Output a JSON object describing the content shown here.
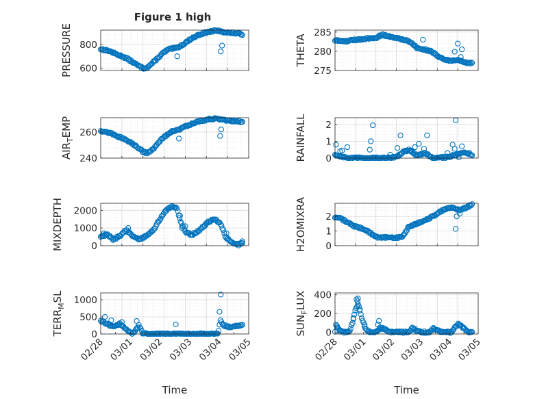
{
  "figure": {
    "title": "Figure 1 high",
    "background": "#ffffff",
    "axes_color": "#262626",
    "marker_color": "#0072bd",
    "grid_color": "#d9d9d9"
  },
  "chart_data": [
    {
      "type": "scatter",
      "ylabel": "PRESSURE",
      "xlabel": "",
      "ylim": [
        580,
        920
      ],
      "yticks": [
        600,
        800
      ],
      "ytick_labels": [
        "600",
        "800"
      ],
      "xlim": [
        0,
        7
      ],
      "xticks": [
        0,
        1,
        2,
        3,
        4,
        5,
        6,
        7
      ],
      "xtick_labels": [],
      "grid": true,
      "minor_grid": true,
      "shape": [
        [
          0,
          760
        ],
        [
          0.4,
          745
        ],
        [
          0.7,
          720
        ],
        [
          1.0,
          700
        ],
        [
          1.25,
          680
        ],
        [
          1.6,
          640
        ],
        [
          2.0,
          598
        ],
        [
          2.2,
          605
        ],
        [
          2.5,
          650
        ],
        [
          2.9,
          720
        ],
        [
          3.2,
          758
        ],
        [
          3.6,
          770
        ],
        [
          3.9,
          800
        ],
        [
          4.3,
          850
        ],
        [
          4.7,
          885
        ],
        [
          5.1,
          905
        ],
        [
          5.45,
          915
        ],
        [
          5.7,
          910
        ],
        [
          6.0,
          898
        ],
        [
          6.3,
          895
        ],
        [
          6.55,
          890
        ],
        [
          6.7,
          885
        ]
      ],
      "outliers": [
        [
          3.62,
          700
        ],
        [
          5.68,
          740
        ],
        [
          5.74,
          790
        ],
        [
          6.05,
          900
        ]
      ]
    },
    {
      "type": "scatter",
      "ylabel": "THETA",
      "xlabel": "",
      "ylim": [
        275,
        285.5
      ],
      "yticks": [
        275,
        280,
        285
      ],
      "ytick_labels": [
        "275",
        "280",
        "285"
      ],
      "xlim": [
        0,
        7
      ],
      "xticks": [
        0,
        1,
        2,
        3,
        4,
        5,
        6,
        7
      ],
      "xtick_labels": [],
      "grid": true,
      "minor_grid": true,
      "shape": [
        [
          0,
          282.8
        ],
        [
          0.5,
          282.6
        ],
        [
          1.0,
          283.0
        ],
        [
          1.5,
          283.2
        ],
        [
          2.0,
          283.5
        ],
        [
          2.3,
          284.3
        ],
        [
          2.7,
          283.8
        ],
        [
          3.0,
          283.4
        ],
        [
          3.3,
          283.1
        ],
        [
          3.7,
          282.4
        ],
        [
          4.0,
          280.9
        ],
        [
          4.3,
          280.6
        ],
        [
          4.7,
          280.0
        ],
        [
          5.0,
          278.8
        ],
        [
          5.3,
          278.1
        ],
        [
          5.6,
          277.5
        ],
        [
          5.9,
          277.8
        ],
        [
          6.1,
          277.6
        ],
        [
          6.35,
          277.0
        ],
        [
          6.55,
          276.8
        ],
        [
          6.7,
          277.0
        ]
      ],
      "outliers": [
        [
          4.3,
          283.0
        ],
        [
          5.85,
          279.9
        ],
        [
          6.0,
          282.0
        ],
        [
          6.2,
          280.5
        ],
        [
          6.15,
          278.5
        ]
      ]
    },
    {
      "type": "scatter",
      "ylabel": "AIR_TEMP",
      "xlabel": "",
      "ylim": [
        240,
        271
      ],
      "yticks": [
        240,
        260
      ],
      "ytick_labels": [
        "240",
        "260"
      ],
      "xlim": [
        0,
        7
      ],
      "xticks": [
        0,
        1,
        2,
        3,
        4,
        5,
        6,
        7
      ],
      "xtick_labels": [],
      "grid": true,
      "minor_grid": true,
      "shape": [
        [
          0,
          261
        ],
        [
          0.5,
          259
        ],
        [
          0.9,
          256
        ],
        [
          1.3,
          253
        ],
        [
          1.7,
          249
        ],
        [
          2.0,
          245
        ],
        [
          2.2,
          244
        ],
        [
          2.5,
          247
        ],
        [
          2.9,
          255
        ],
        [
          3.3,
          260
        ],
        [
          3.7,
          262
        ],
        [
          4.1,
          265
        ],
        [
          4.6,
          268
        ],
        [
          5.0,
          269.5
        ],
        [
          5.4,
          270.5
        ],
        [
          5.8,
          269
        ],
        [
          6.2,
          268.5
        ],
        [
          6.5,
          268
        ],
        [
          6.7,
          267.5
        ]
      ],
      "outliers": [
        [
          3.7,
          255
        ],
        [
          5.65,
          257
        ],
        [
          5.7,
          262
        ],
        [
          6.0,
          269
        ]
      ]
    },
    {
      "type": "scatter",
      "ylabel": "RAINFALL",
      "xlabel": "",
      "ylim": [
        0,
        2.4
      ],
      "yticks": [
        0,
        1,
        2
      ],
      "ytick_labels": [
        "0",
        "1",
        "2"
      ],
      "xlim": [
        0,
        7
      ],
      "xticks": [
        0,
        1,
        2,
        3,
        4,
        5,
        6,
        7
      ],
      "xtick_labels": [],
      "grid": true,
      "minor_grid": true,
      "shape": [
        [
          0,
          0.2
        ],
        [
          0.3,
          0.1
        ],
        [
          0.6,
          0
        ],
        [
          2.5,
          0
        ],
        [
          3.0,
          0.05
        ],
        [
          3.3,
          0.35
        ],
        [
          3.6,
          0.5
        ],
        [
          4.0,
          0.15
        ],
        [
          4.4,
          0.3
        ],
        [
          4.8,
          0
        ],
        [
          5.4,
          0.05
        ],
        [
          5.8,
          0.15
        ],
        [
          6.2,
          0.3
        ],
        [
          6.5,
          0.3
        ],
        [
          6.7,
          0.2
        ]
      ],
      "outliers": [
        [
          0.05,
          0.8
        ],
        [
          0.25,
          0.4
        ],
        [
          0.35,
          0.45
        ],
        [
          0.6,
          0.65
        ],
        [
          1.05,
          0.05
        ],
        [
          1.7,
          0.5
        ],
        [
          1.75,
          1.0
        ],
        [
          1.85,
          1.95
        ],
        [
          2.7,
          0.2
        ],
        [
          3.05,
          0.6
        ],
        [
          3.2,
          1.35
        ],
        [
          3.5,
          0.4
        ],
        [
          3.7,
          0.4
        ],
        [
          3.75,
          0.45
        ],
        [
          3.9,
          0.65
        ],
        [
          4.1,
          0.85
        ],
        [
          4.35,
          0.55
        ],
        [
          4.5,
          1.35
        ],
        [
          5.5,
          0.3
        ],
        [
          5.75,
          0.8
        ],
        [
          5.85,
          0.55
        ],
        [
          5.9,
          2.25
        ],
        [
          6.05,
          0.05
        ],
        [
          6.2,
          0.7
        ]
      ]
    },
    {
      "type": "scatter",
      "ylabel": "MIXDEPTH",
      "xlabel": "",
      "ylim": [
        0,
        2400
      ],
      "yticks": [
        0,
        1000,
        2000
      ],
      "ytick_labels": [
        "0",
        "1000",
        "2000"
      ],
      "xlim": [
        0,
        7
      ],
      "xticks": [
        0,
        1,
        2,
        3,
        4,
        5,
        6,
        7
      ],
      "xtick_labels": [],
      "grid": true,
      "minor_grid": true,
      "shape": [
        [
          0,
          500
        ],
        [
          0.3,
          650
        ],
        [
          0.6,
          350
        ],
        [
          0.9,
          550
        ],
        [
          1.2,
          900
        ],
        [
          1.5,
          550
        ],
        [
          1.8,
          350
        ],
        [
          2.1,
          500
        ],
        [
          2.5,
          900
        ],
        [
          2.8,
          1500
        ],
        [
          3.1,
          2000
        ],
        [
          3.4,
          2250
        ],
        [
          3.6,
          2100
        ],
        [
          3.8,
          1300
        ],
        [
          4.0,
          800
        ],
        [
          4.3,
          600
        ],
        [
          4.7,
          900
        ],
        [
          5.1,
          1350
        ],
        [
          5.4,
          1500
        ],
        [
          5.7,
          1200
        ],
        [
          5.9,
          500
        ],
        [
          6.2,
          200
        ],
        [
          6.5,
          50
        ],
        [
          6.7,
          150
        ]
      ],
      "outliers": [
        [
          0.15,
          700
        ],
        [
          1.3,
          1000
        ],
        [
          3.75,
          1700
        ],
        [
          3.85,
          1000
        ],
        [
          4.0,
          1100
        ],
        [
          5.95,
          700
        ],
        [
          6.7,
          250
        ]
      ]
    },
    {
      "type": "scatter",
      "ylabel": "H2OMIXRA",
      "xlabel": "",
      "ylim": [
        0,
        2.9
      ],
      "yticks": [
        0,
        1,
        2
      ],
      "ytick_labels": [
        "0",
        "1",
        "2"
      ],
      "xlim": [
        0,
        7
      ],
      "xticks": [
        0,
        1,
        2,
        3,
        4,
        5,
        6,
        7
      ],
      "xtick_labels": [],
      "grid": true,
      "minor_grid": true,
      "shape": [
        [
          0,
          1.9
        ],
        [
          0.3,
          1.85
        ],
        [
          0.6,
          1.6
        ],
        [
          1.0,
          1.3
        ],
        [
          1.4,
          1.15
        ],
        [
          1.7,
          0.9
        ],
        [
          2.0,
          0.6
        ],
        [
          2.5,
          0.55
        ],
        [
          3.0,
          0.55
        ],
        [
          3.3,
          0.6
        ],
        [
          3.6,
          1.3
        ],
        [
          4.0,
          1.5
        ],
        [
          4.4,
          1.75
        ],
        [
          4.8,
          2.0
        ],
        [
          5.1,
          2.3
        ],
        [
          5.4,
          2.5
        ],
        [
          5.8,
          2.6
        ],
        [
          6.1,
          2.4
        ],
        [
          6.4,
          2.6
        ],
        [
          6.7,
          2.8
        ]
      ],
      "outliers": [
        [
          3.9,
          1.5
        ],
        [
          5.9,
          1.15
        ],
        [
          5.95,
          2.0
        ],
        [
          6.1,
          2.2
        ],
        [
          6.0,
          2.5
        ]
      ]
    },
    {
      "type": "scatter",
      "ylabel": "TERR_MSL",
      "xlabel": "Time",
      "ylim": [
        0,
        1200
      ],
      "yticks": [
        0,
        500,
        1000
      ],
      "ytick_labels": [
        "0",
        "500",
        "1000"
      ],
      "xlim": [
        0,
        7
      ],
      "xticks": [
        0,
        1,
        2,
        3,
        4,
        5,
        6,
        7
      ],
      "xtick_labels": [
        "02/28",
        "",
        "03/01",
        "",
        "03/02",
        "",
        "03/03",
        "",
        "03/04",
        "",
        "03/05"
      ],
      "xtick_values": [
        0,
        0.7,
        1.4,
        2.1,
        2.8,
        3.5,
        4.2,
        4.9,
        5.6,
        6.3,
        7.0
      ],
      "xtick_label_indices": [
        0,
        2,
        4,
        6,
        8,
        10
      ],
      "grid": true,
      "minor_grid": true,
      "shape": [
        [
          0,
          380
        ],
        [
          0.3,
          300
        ],
        [
          0.6,
          200
        ],
        [
          0.9,
          300
        ],
        [
          1.2,
          150
        ],
        [
          1.5,
          0
        ],
        [
          1.8,
          250
        ],
        [
          2.0,
          0
        ],
        [
          3.0,
          0
        ],
        [
          4.0,
          0
        ],
        [
          5.0,
          0
        ],
        [
          5.55,
          0
        ],
        [
          5.65,
          400
        ],
        [
          5.8,
          250
        ],
        [
          6.1,
          200
        ],
        [
          6.4,
          230
        ],
        [
          6.7,
          280
        ]
      ],
      "outliers": [
        [
          0.2,
          500
        ],
        [
          0.5,
          400
        ],
        [
          1.0,
          350
        ],
        [
          1.7,
          380
        ],
        [
          3.55,
          280
        ],
        [
          5.62,
          650
        ],
        [
          5.68,
          1150
        ]
      ]
    },
    {
      "type": "scatter",
      "ylabel": "SUN_FLUX",
      "xlabel": "Time",
      "ylim": [
        -20,
        420
      ],
      "yticks": [
        0,
        200,
        400
      ],
      "ytick_labels": [
        "0",
        "200",
        "400"
      ],
      "xlim": [
        0,
        7
      ],
      "xticks": [
        0,
        1,
        2,
        3,
        4,
        5,
        6,
        7
      ],
      "xtick_labels": [
        "02/28",
        "",
        "03/01",
        "",
        "03/02",
        "",
        "03/03",
        "",
        "03/04",
        "",
        "03/05"
      ],
      "xtick_values": [
        0,
        0.7,
        1.4,
        2.1,
        2.8,
        3.5,
        4.2,
        4.9,
        5.6,
        6.3,
        7.0
      ],
      "xtick_label_indices": [
        0,
        2,
        4,
        6,
        8,
        10
      ],
      "grid": true,
      "minor_grid": true,
      "shape": [
        [
          0,
          0
        ],
        [
          0.05,
          90
        ],
        [
          0.2,
          30
        ],
        [
          0.35,
          0
        ],
        [
          0.7,
          0
        ],
        [
          0.85,
          100
        ],
        [
          1.0,
          250
        ],
        [
          1.15,
          300
        ],
        [
          1.3,
          150
        ],
        [
          1.5,
          30
        ],
        [
          1.7,
          0
        ],
        [
          2.0,
          0
        ],
        [
          2.3,
          50
        ],
        [
          2.5,
          20
        ],
        [
          2.7,
          0
        ],
        [
          3.6,
          0
        ],
        [
          3.8,
          50
        ],
        [
          4.0,
          10
        ],
        [
          4.2,
          0
        ],
        [
          4.6,
          0
        ],
        [
          4.8,
          40
        ],
        [
          5.0,
          20
        ],
        [
          5.2,
          0
        ],
        [
          5.7,
          0
        ],
        [
          5.9,
          60
        ],
        [
          6.05,
          90
        ],
        [
          6.2,
          60
        ],
        [
          6.4,
          20
        ],
        [
          6.6,
          0
        ],
        [
          6.7,
          0
        ]
      ],
      "outliers": [
        [
          0.1,
          50
        ],
        [
          0.25,
          5
        ],
        [
          1.05,
          350
        ],
        [
          1.12,
          360
        ],
        [
          1.1,
          330
        ],
        [
          1.2,
          230
        ],
        [
          0.9,
          140
        ],
        [
          1.45,
          80
        ],
        [
          2.1,
          80
        ],
        [
          2.15,
          120
        ],
        [
          2.2,
          50
        ]
      ]
    }
  ]
}
